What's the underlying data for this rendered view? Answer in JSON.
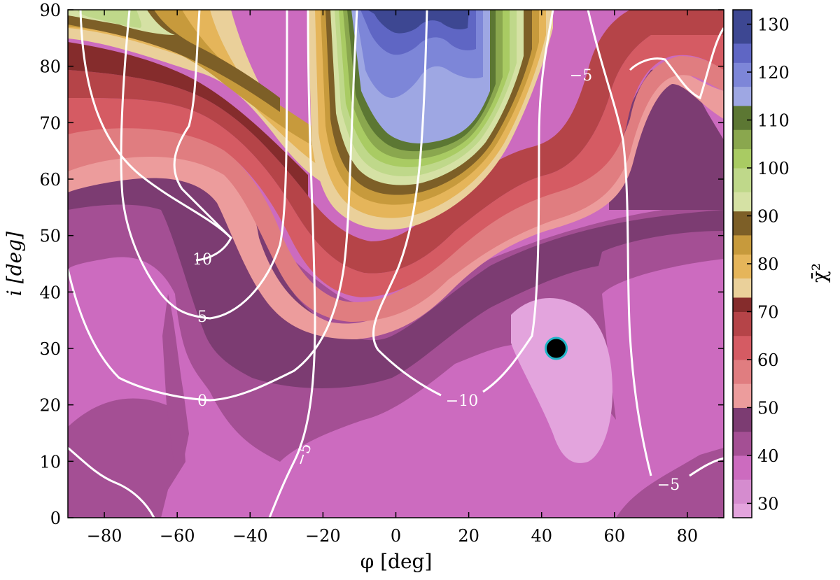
{
  "chart_data": {
    "type": "heatmap",
    "xlabel": "φ [deg]",
    "ylabel": "i [deg]",
    "xlim": [
      -90,
      90
    ],
    "ylim": [
      0,
      90
    ],
    "xticks": [
      -80,
      -60,
      -40,
      -20,
      0,
      20,
      40,
      60,
      80
    ],
    "yticks": [
      0,
      10,
      20,
      30,
      40,
      50,
      60,
      70,
      80,
      90
    ],
    "colorbar": {
      "label": "χ̄²",
      "range": [
        27,
        133
      ],
      "ticks": [
        30,
        40,
        50,
        60,
        70,
        80,
        90,
        100,
        110,
        120,
        130
      ],
      "levels": [
        {
          "from": 27,
          "to": 30,
          "color": "#e3a4dd"
        },
        {
          "from": 30,
          "to": 35,
          "color": "#d58ccf"
        },
        {
          "from": 35,
          "to": 40,
          "color": "#cc6bbf"
        },
        {
          "from": 40,
          "to": 45,
          "color": "#a44f94"
        },
        {
          "from": 45,
          "to": 50,
          "color": "#7c3c72"
        },
        {
          "from": 50,
          "to": 55,
          "color": "#ec9c9c"
        },
        {
          "from": 55,
          "to": 60,
          "color": "#e07d80"
        },
        {
          "from": 60,
          "to": 65,
          "color": "#d55b63"
        },
        {
          "from": 65,
          "to": 70,
          "color": "#b54448"
        },
        {
          "from": 70,
          "to": 73,
          "color": "#852c2c"
        },
        {
          "from": 73,
          "to": 77,
          "color": "#ead09a"
        },
        {
          "from": 77,
          "to": 82,
          "color": "#e5b55a"
        },
        {
          "from": 82,
          "to": 86,
          "color": "#c79a3c"
        },
        {
          "from": 86,
          "to": 91,
          "color": "#7d5f27"
        },
        {
          "from": 91,
          "to": 95,
          "color": "#d5e1a4"
        },
        {
          "from": 95,
          "to": 100,
          "color": "#bfd88a"
        },
        {
          "from": 100,
          "to": 104,
          "color": "#a9cb63"
        },
        {
          "from": 104,
          "to": 108,
          "color": "#8aa74e"
        },
        {
          "from": 108,
          "to": 113,
          "color": "#5c7733"
        },
        {
          "from": 113,
          "to": 117,
          "color": "#9ea7e3"
        },
        {
          "from": 117,
          "to": 122,
          "color": "#7d86d8"
        },
        {
          "from": 122,
          "to": 126,
          "color": "#5f66c4"
        },
        {
          "from": 126,
          "to": 133,
          "color": "#3d4792"
        }
      ]
    },
    "contour_labels": [
      {
        "text": "10",
        "x": -53.5,
        "y": 45.5
      },
      {
        "text": "5",
        "x": -53.5,
        "y": 35.8
      },
      {
        "text": "0",
        "x": -53.5,
        "y": 20.5
      },
      {
        "text": "−10",
        "x": 14,
        "y": 20.5
      },
      {
        "text": "−5",
        "x": -25,
        "y": 11
      },
      {
        "text": "−5",
        "x": 51,
        "y": 78.5
      },
      {
        "text": "−5",
        "x": 76,
        "y": 5.5
      }
    ],
    "best_fit": {
      "x": 44,
      "y": 30,
      "fill": "#000000",
      "edge": "#22b5c8"
    }
  }
}
